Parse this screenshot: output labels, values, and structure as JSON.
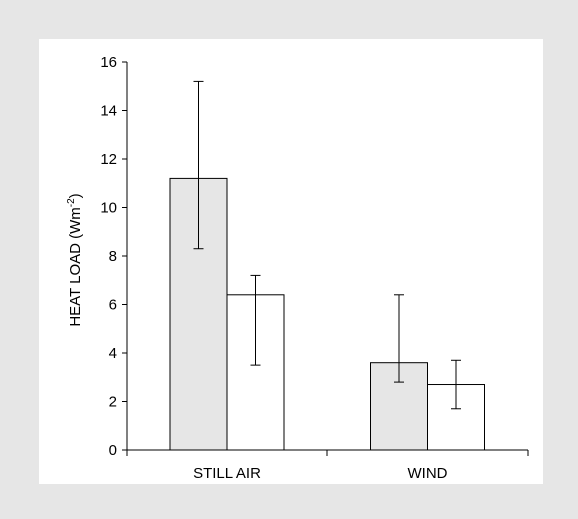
{
  "chart_data": {
    "type": "bar",
    "title": "",
    "xlabel": "",
    "ylabel": "HEAT LOAD (Wm",
    "ylabel_superscript": "-2",
    "ylabel_close": ")",
    "categories": [
      "STILL AIR",
      "WIND"
    ],
    "series": [
      {
        "values": [
          11.2,
          3.6
        ],
        "errors_upper": [
          15.2,
          6.4
        ],
        "errors_lower": [
          8.3,
          2.8
        ],
        "fill": "#e6e6e6"
      },
      {
        "values": [
          6.4,
          2.7
        ],
        "errors_upper": [
          7.2,
          3.7
        ],
        "errors_lower": [
          3.5,
          1.7
        ],
        "fill": "#ffffff"
      }
    ],
    "ylim": [
      0,
      16
    ],
    "yticks": [
      0,
      2,
      4,
      6,
      8,
      10,
      12,
      14,
      16
    ],
    "grid": false,
    "legend": "none"
  },
  "colors": {
    "outer_background": "#e6e6e6",
    "panel_background": "#ffffff",
    "axis": "#000000"
  }
}
